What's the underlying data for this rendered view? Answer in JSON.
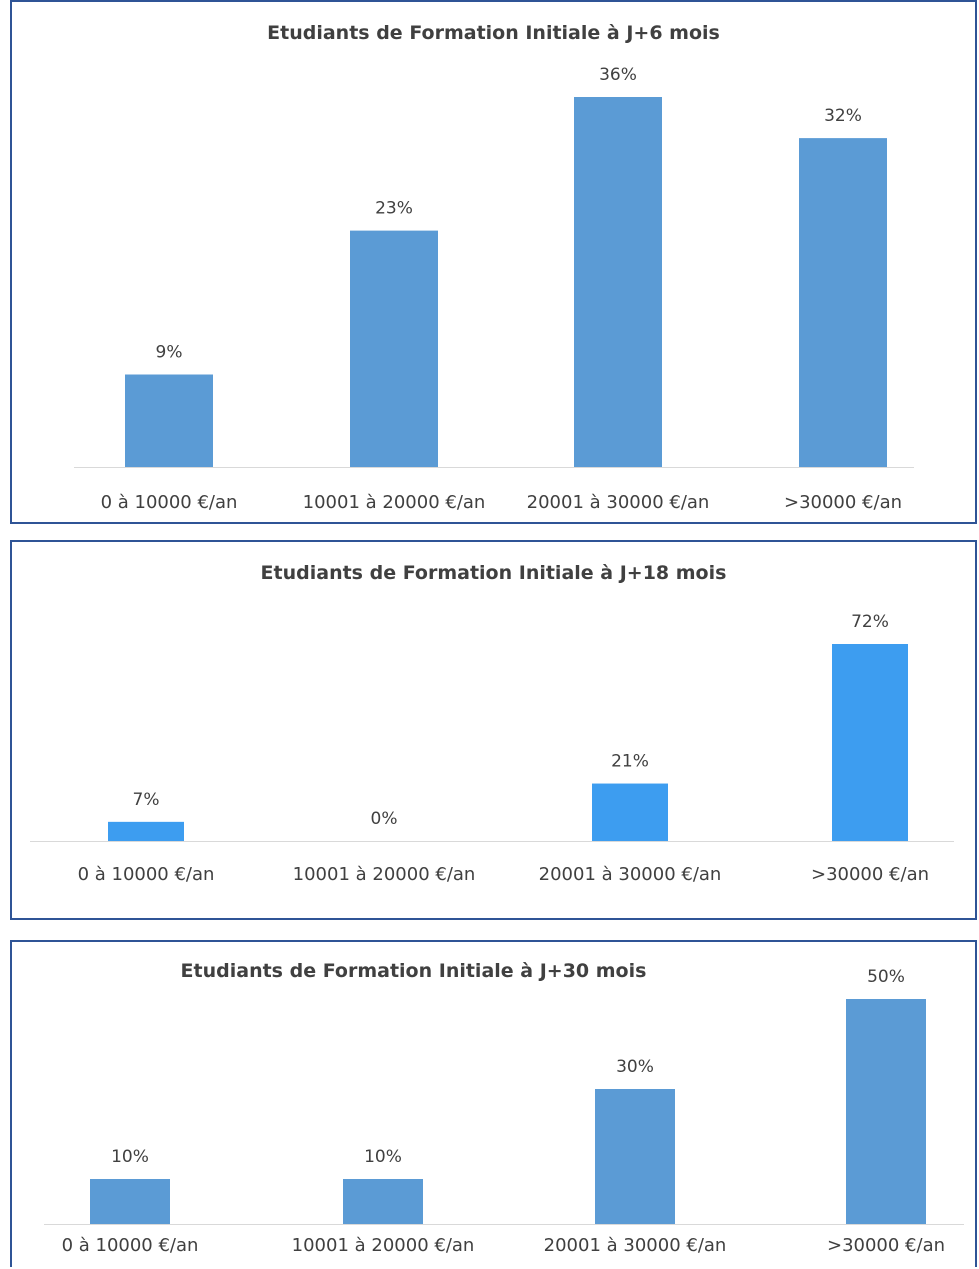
{
  "colors": {
    "bar_primary": "#5b9bd5",
    "bar_bright": "#3d9df0",
    "axis": "#d9d9d9",
    "text": "#404040",
    "border": "#2f5496"
  },
  "chart_data": [
    {
      "type": "bar",
      "title": "Etudiants de Formation Initiale à J+6 mois",
      "categories": [
        "0 à 10000 €/an",
        "10001 à 20000 €/an",
        "20001 à 30000 €/an",
        ">30000 €/an"
      ],
      "values": [
        9,
        23,
        36,
        32
      ],
      "data_labels": [
        "9%",
        "23%",
        "36%",
        "32%"
      ],
      "ylim": [
        0,
        36
      ],
      "grid": false
    },
    {
      "type": "bar",
      "title": "Etudiants de Formation Initiale à J+18 mois",
      "categories": [
        "0 à 10000 €/an",
        "10001 à 20000 €/an",
        "20001 à 30000 €/an",
        ">30000 €/an"
      ],
      "values": [
        7,
        0,
        21,
        72
      ],
      "data_labels": [
        "7%",
        "0%",
        "21%",
        "72%"
      ],
      "ylim": [
        0,
        72
      ],
      "grid": false
    },
    {
      "type": "bar",
      "title": "Etudiants de Formation Initiale à J+30 mois",
      "categories": [
        "0 à 10000 €/an",
        "10001 à 20000 €/an",
        "20001 à 30000 €/an",
        ">30000 €/an"
      ],
      "values": [
        10,
        10,
        30,
        50
      ],
      "data_labels": [
        "10%",
        "10%",
        "30%",
        "50%"
      ],
      "ylim": [
        0,
        50
      ],
      "grid": false
    }
  ]
}
